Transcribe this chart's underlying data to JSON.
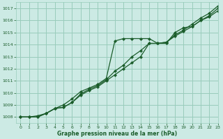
{
  "title": "Graphe pression niveau de la mer (hPa)",
  "background_color": "#cceae4",
  "grid_color": "#99ccbb",
  "line_color": "#1a5c2a",
  "xlim": [
    -0.5,
    23
  ],
  "ylim": [
    1007.5,
    1017.5
  ],
  "yticks": [
    1008,
    1009,
    1010,
    1011,
    1012,
    1013,
    1014,
    1015,
    1016,
    1017
  ],
  "xticks": [
    0,
    1,
    2,
    3,
    4,
    5,
    6,
    7,
    8,
    9,
    10,
    11,
    12,
    13,
    14,
    15,
    16,
    17,
    18,
    19,
    20,
    21,
    22,
    23
  ],
  "line1_x": [
    0,
    1,
    2,
    3,
    4,
    5,
    6,
    7,
    8,
    9,
    10,
    11,
    12,
    13,
    14,
    15,
    16,
    17,
    18,
    19,
    20,
    21,
    22,
    23
  ],
  "line1_y": [
    1008.0,
    1008.0,
    1008.1,
    1008.3,
    1008.7,
    1009.0,
    1009.5,
    1010.1,
    1010.4,
    1010.7,
    1011.2,
    1014.3,
    1014.5,
    1014.5,
    1014.5,
    1014.5,
    1014.1,
    1014.1,
    1015.0,
    1015.4,
    1015.5,
    1016.0,
    1016.3,
    1016.8
  ],
  "line2_x": [
    0,
    1,
    2,
    3,
    4,
    5,
    6,
    7,
    8,
    9,
    10,
    11,
    12,
    13,
    14,
    15,
    16,
    17,
    18,
    19,
    20,
    21,
    22,
    23
  ],
  "line2_y": [
    1008.0,
    1008.0,
    1008.0,
    1008.3,
    1008.7,
    1008.8,
    1009.2,
    1009.8,
    1010.2,
    1010.5,
    1011.0,
    1011.5,
    1012.0,
    1012.5,
    1013.0,
    1014.1,
    1014.1,
    1014.2,
    1014.7,
    1015.1,
    1015.5,
    1016.0,
    1016.4,
    1017.0
  ],
  "line3_x": [
    0,
    1,
    2,
    3,
    4,
    5,
    6,
    7,
    8,
    9,
    10,
    11,
    12,
    13,
    14,
    15,
    16,
    17,
    18,
    19,
    20,
    21,
    22,
    23
  ],
  "line3_y": [
    1008.0,
    1008.0,
    1008.0,
    1008.3,
    1008.7,
    1008.8,
    1009.2,
    1009.9,
    1010.3,
    1010.6,
    1011.1,
    1011.8,
    1012.3,
    1013.0,
    1013.5,
    1014.1,
    1014.1,
    1014.2,
    1014.8,
    1015.2,
    1015.7,
    1016.2,
    1016.6,
    1017.2
  ]
}
